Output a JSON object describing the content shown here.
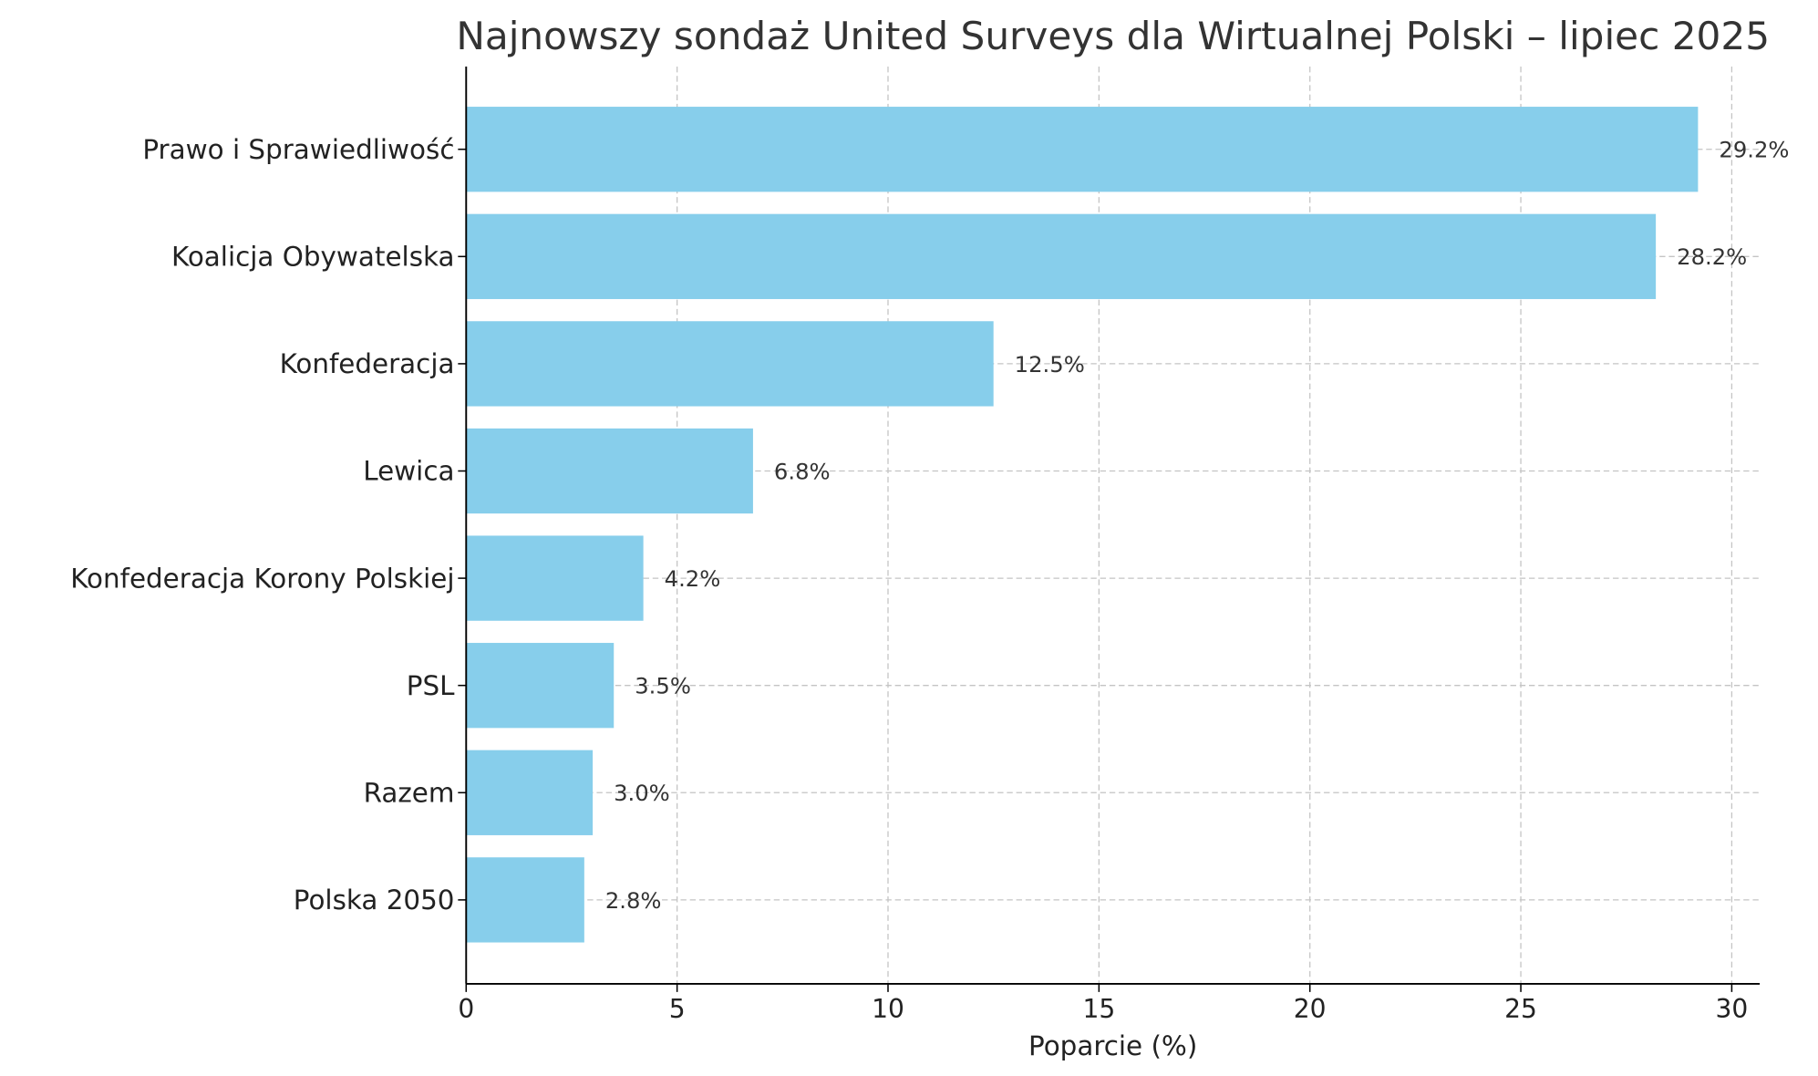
{
  "chart_data": {
    "type": "bar",
    "orientation": "horizontal",
    "title": "Najnowszy sondaż United Surveys dla Wirtualnej Polski – lipiec 2025",
    "xlabel": "Poparcie (%)",
    "ylabel": "",
    "categories": [
      "Prawo i Sprawiedliwość",
      "Koalicja Obywatelska",
      "Konfederacja",
      "Lewica",
      "Konfederacja Korony Polskiej",
      "PSL",
      "Razem",
      "Polska 2050"
    ],
    "values": [
      29.2,
      28.2,
      12.5,
      6.8,
      4.2,
      3.5,
      3.0,
      2.8
    ],
    "data_labels": [
      "29.2%",
      "28.2%",
      "12.5%",
      "6.8%",
      "4.2%",
      "3.5%",
      "3.0%",
      "2.8%"
    ],
    "xlim": [
      0,
      30.7
    ],
    "xticks": [
      "0",
      "5",
      "10",
      "15",
      "20",
      "25",
      "30"
    ],
    "grid": true,
    "grid_style": "dashed",
    "bar_color": "#87CEEB"
  }
}
